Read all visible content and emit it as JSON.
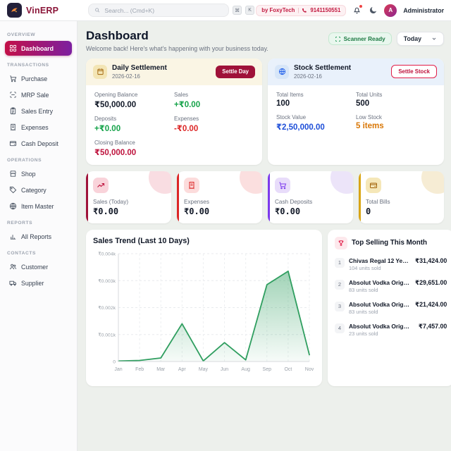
{
  "topbar": {
    "brand": "VinERP",
    "search": {
      "placeholder": "Search... (Cmd+K)",
      "key_cmd": "⌘",
      "key_k": "K"
    },
    "vendor": {
      "by": "by FoxyTech",
      "divider": "|",
      "phone": "9141150551"
    },
    "user": {
      "initial": "A",
      "name": "Administrator"
    }
  },
  "sidebar": {
    "sections": [
      {
        "label": "OVERVIEW",
        "items": [
          {
            "label": "Dashboard",
            "icon": "grid-icon",
            "active": true
          }
        ]
      },
      {
        "label": "TRANSACTIONS",
        "items": [
          {
            "label": "Purchase",
            "icon": "cart-icon"
          },
          {
            "label": "MRP Sale",
            "icon": "scan-icon"
          },
          {
            "label": "Sales Entry",
            "icon": "clipboard-icon"
          },
          {
            "label": "Expenses",
            "icon": "receipt-icon"
          },
          {
            "label": "Cash Deposit",
            "icon": "wallet-icon"
          }
        ]
      },
      {
        "label": "OPERATIONS",
        "items": [
          {
            "label": "Shop",
            "icon": "store-icon"
          },
          {
            "label": "Category",
            "icon": "tag-icon"
          },
          {
            "label": "Item Master",
            "icon": "globe-icon"
          }
        ]
      },
      {
        "label": "REPORTS",
        "items": [
          {
            "label": "All Reports",
            "icon": "bar-chart-icon"
          }
        ]
      },
      {
        "label": "CONTACTS",
        "items": [
          {
            "label": "Customer",
            "icon": "users-icon"
          },
          {
            "label": "Supplier",
            "icon": "truck-icon"
          }
        ]
      }
    ]
  },
  "header": {
    "title": "Dashboard",
    "subtitle": "Welcome back! Here's what's happening with your business today.",
    "scanner_label": "Scanner Ready",
    "period": "Today"
  },
  "daily_settlement": {
    "title": "Daily Settlement",
    "date": "2026-02-16",
    "button": "Settle Day",
    "opening_label": "Opening Balance",
    "opening_value": "₹50,000.00",
    "sales_label": "Sales",
    "sales_value": "+₹0.00",
    "deposits_label": "Deposits",
    "deposits_value": "+₹0.00",
    "expenses_label": "Expenses",
    "expenses_value": "-₹0.00",
    "closing_label": "Closing Balance",
    "closing_value": "₹50,000.00"
  },
  "stock_settlement": {
    "title": "Stock Settlement",
    "date": "2026-02-16",
    "button": "Settle Stock",
    "items_label": "Total Items",
    "items_value": "100",
    "units_label": "Total Units",
    "units_value": "500",
    "value_label": "Stock Value",
    "value_value": "₹2,50,000.00",
    "low_label": "Low Stock",
    "low_value": "5 items"
  },
  "stats": [
    {
      "label": "Sales (Today)",
      "value": "₹0.00",
      "accent": "#9f1239",
      "icon": "trending-up-icon"
    },
    {
      "label": "Expenses",
      "value": "₹0.00",
      "accent": "#dc2626",
      "icon": "receipt-icon"
    },
    {
      "label": "Cash Deposits",
      "value": "₹0.00",
      "accent": "#7c3aed",
      "icon": "cart-icon"
    },
    {
      "label": "Total Bills",
      "value": "0",
      "accent": "#d9a514",
      "icon": "wallet-icon"
    }
  ],
  "chart_data": {
    "type": "area",
    "title": "Sales Trend (Last 10 Days)",
    "categories": [
      "Jan",
      "Feb",
      "Mar",
      "Apr",
      "May",
      "Jun",
      "Aug",
      "Sep",
      "Oct",
      "Nov"
    ],
    "values": [
      0.02,
      0.04,
      0.13,
      1.4,
      0.02,
      0.7,
      0.06,
      2.85,
      3.35,
      0.25
    ],
    "value_unit": "axis units where 1 = ₹0.001k tick",
    "ylim": [
      0,
      4
    ],
    "yticks": [
      {
        "value": 0,
        "label": "0"
      },
      {
        "value": 1,
        "label": "₹0.001k"
      },
      {
        "value": 2,
        "label": "₹0.002k"
      },
      {
        "value": 3,
        "label": "₹0.003k"
      },
      {
        "value": 4,
        "label": "₹0.004k"
      }
    ],
    "xlabel": "",
    "ylabel": "",
    "grid": true,
    "legend": false,
    "line_color": "#2f9e5f",
    "fill_from": "rgba(46,158,95,0.45)",
    "fill_to": "rgba(46,158,95,0.04)"
  },
  "top_selling": {
    "title": "Top Selling This Month",
    "items": [
      {
        "rank": "1",
        "name": "Chivas Regal 12 Years ...",
        "units": "104 units sold",
        "amount": "₹31,424.00"
      },
      {
        "rank": "2",
        "name": "Absolut Vodka Origina...",
        "units": "83 units sold",
        "amount": "₹29,651.00"
      },
      {
        "rank": "3",
        "name": "Absolut Vodka Origina...",
        "units": "83 units sold",
        "amount": "₹21,424.00"
      },
      {
        "rank": "4",
        "name": "Absolut Vodka Origina...",
        "units": "23 units sold",
        "amount": "₹7,457.00"
      }
    ]
  },
  "colors": {
    "brand": "#8a1538",
    "active_gradient_from": "#c31048",
    "active_gradient_to": "#7c1fa0",
    "settle_day_button": "#9f1239",
    "green": "#16a34a",
    "red": "#dc2626",
    "blue": "#1d4ed8",
    "orange": "#d97706",
    "chart_line": "#2f9e5f"
  }
}
